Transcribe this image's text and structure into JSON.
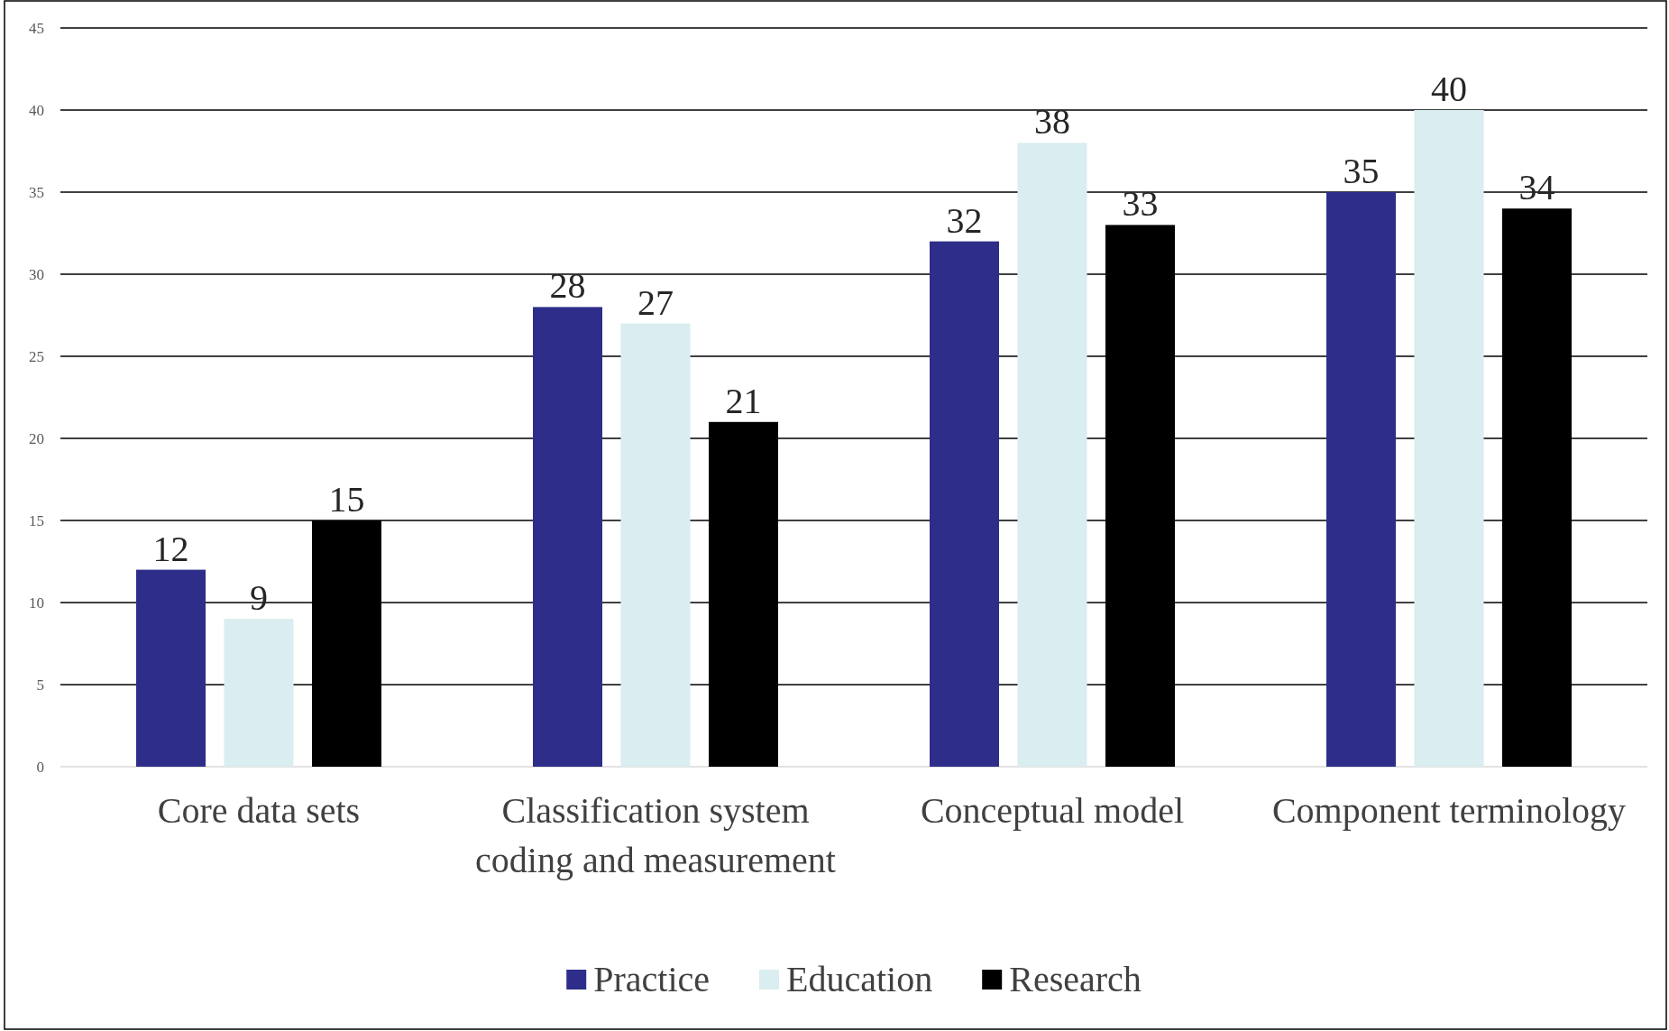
{
  "chart_data": {
    "type": "bar",
    "categories": [
      "Core data sets",
      "Classification system coding and measurement",
      "Conceptual model",
      "Component terminology"
    ],
    "series": [
      {
        "name": "Practice",
        "color": "#2e2e8a",
        "values": [
          12,
          28,
          32,
          35
        ]
      },
      {
        "name": "Education",
        "color": "#daedf0",
        "values": [
          9,
          27,
          38,
          40
        ]
      },
      {
        "name": "Research",
        "color": "#000000",
        "values": [
          15,
          21,
          33,
          34
        ]
      }
    ],
    "ylim": [
      0,
      45
    ],
    "yticks": [
      0,
      5,
      10,
      15,
      20,
      25,
      30,
      35,
      40,
      45
    ],
    "grid": "y",
    "legend": "bottom",
    "data_labels": true
  }
}
